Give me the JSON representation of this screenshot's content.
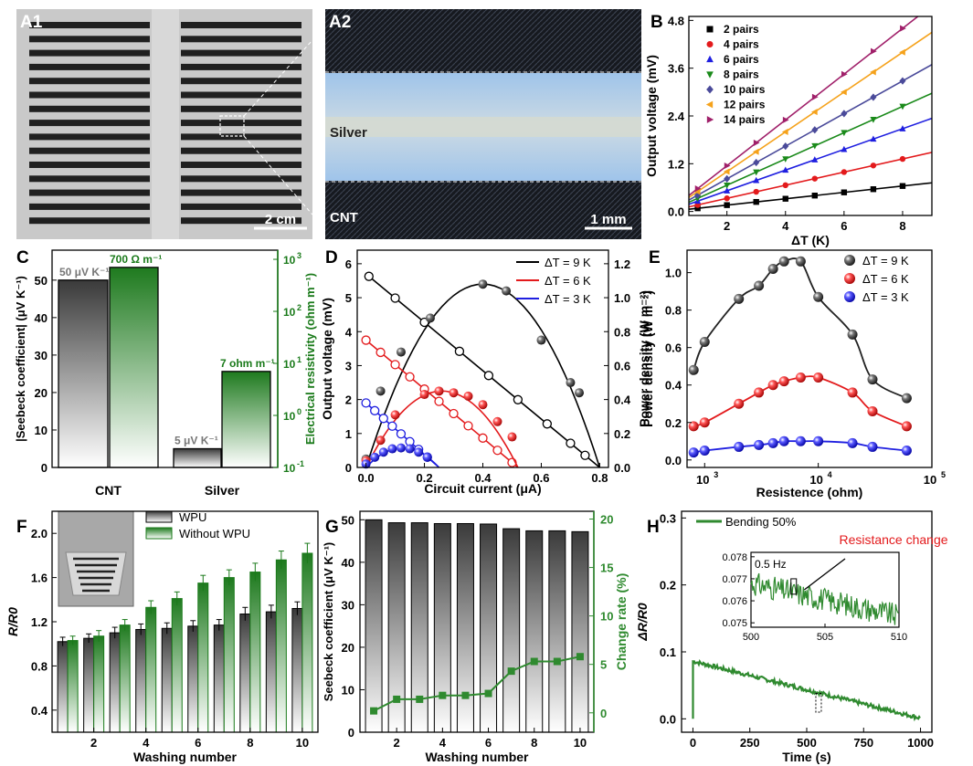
{
  "panels": {
    "a1": {
      "label": "A1",
      "scale": "2 cm"
    },
    "a2": {
      "label": "A2",
      "scale": "1 mm",
      "text_top": "Silver",
      "text_bottom": "CNT"
    },
    "f_inset_label": ""
  },
  "colors": {
    "black": "#000000",
    "red": "#e31a1c",
    "blue": "#1f1fe0",
    "green": "#1a8a1a",
    "navy": "#4a4a9a",
    "orange": "#f5a21b",
    "purple": "#a0206a",
    "darkgreen": "#2f8a2f"
  },
  "chart_data": [
    {
      "id": "B",
      "label": "B",
      "type": "scatter",
      "xlabel": "ΔT (K)",
      "ylabel": "Output voltage (mV)",
      "xlim": [
        0.7,
        9
      ],
      "ylim": [
        -0.1,
        4.9
      ],
      "xticks": [
        2,
        4,
        6,
        8
      ],
      "yticks": [
        0.0,
        1.2,
        2.4,
        3.6,
        4.8
      ],
      "ytick_labels": [
        "0.0",
        "1.2",
        "2.4",
        "3.6",
        "4.8"
      ],
      "x": [
        1,
        2,
        3,
        4,
        5,
        6,
        7,
        8
      ],
      "series": [
        {
          "name": "2 pairs",
          "marker": "square",
          "color": "#000000",
          "slope": 0.08
        },
        {
          "name": "4 pairs",
          "marker": "circle",
          "color": "#e31a1c",
          "slope": 0.165
        },
        {
          "name": "6 pairs",
          "marker": "triangle-up",
          "color": "#1f1fe0",
          "slope": 0.26
        },
        {
          "name": "8 pairs",
          "marker": "triangle-down",
          "color": "#1a8a1a",
          "slope": 0.33
        },
        {
          "name": "10 pairs",
          "marker": "diamond",
          "color": "#4a4a9a",
          "slope": 0.41
        },
        {
          "name": "12 pairs",
          "marker": "triangle-left",
          "color": "#f5a21b",
          "slope": 0.5
        },
        {
          "name": "14 pairs",
          "marker": "triangle-right",
          "color": "#a0206a",
          "slope": 0.575
        }
      ]
    },
    {
      "id": "C",
      "label": "C",
      "type": "bar",
      "categories": [
        "CNT",
        "Silver"
      ],
      "ylabel": "|Seebeck coefficient| (μV K⁻¹)",
      "ylabel2": "Electrical resistivity (ohm m⁻¹)",
      "ylim": [
        0,
        58
      ],
      "yticks": [
        0,
        10,
        20,
        30,
        40,
        50
      ],
      "y2ticks": [
        "10",
        "10",
        "10",
        "10",
        "10"
      ],
      "y2exp": [
        "-1",
        "0",
        "1",
        "2",
        "3"
      ],
      "seebeck": [
        50,
        5
      ],
      "resistivity": [
        700,
        7
      ],
      "seebeck_labels": [
        "50 μV K⁻¹",
        "5 μV K⁻¹"
      ],
      "resistivity_labels": [
        "700 Ω m⁻¹",
        "7 ohm m⁻¹"
      ]
    },
    {
      "id": "D",
      "label": "D",
      "type": "scatter+line",
      "xlabel": "Circuit current (μA)",
      "ylabel": "Output voltage (mV)",
      "ylabel2": "Power density (W m⁻²)",
      "xlim": [
        -0.03,
        0.83
      ],
      "ylim": [
        0,
        6.4
      ],
      "y2lim": [
        0,
        1.28
      ],
      "xticks": [
        0.0,
        0.2,
        0.4,
        0.6,
        0.8
      ],
      "xtick_labels": [
        "0.0",
        "0.2",
        "0.4",
        "0.6",
        "0.8"
      ],
      "yticks": [
        0,
        1,
        2,
        3,
        4,
        5,
        6
      ],
      "y2ticks": [
        0.0,
        0.2,
        0.4,
        0.6,
        0.8,
        1.0,
        1.2
      ],
      "y2tick_labels": [
        "0.0",
        "0.2",
        "0.4",
        "0.6",
        "0.8",
        "1.0",
        "1.2"
      ],
      "series": [
        {
          "name": "ΔT = 9 K",
          "color": "#000000",
          "voc": 5.7,
          "isc": 0.8,
          "voltage_x": [
            0.01,
            0.1,
            0.2,
            0.32,
            0.42,
            0.52,
            0.62,
            0.7,
            0.75
          ],
          "power_x": [
            0.0,
            0.05,
            0.12,
            0.22,
            0.4,
            0.48,
            0.6,
            0.7,
            0.73
          ],
          "power_y": [
            0.05,
            0.45,
            0.68,
            0.88,
            1.08,
            1.04,
            0.75,
            0.5,
            0.44
          ]
        },
        {
          "name": "ΔT = 6 K",
          "color": "#e31a1c",
          "voc": 3.75,
          "isc": 0.52,
          "voltage_x": [
            0.0,
            0.05,
            0.1,
            0.15,
            0.2,
            0.25,
            0.3,
            0.35,
            0.4,
            0.45,
            0.5
          ],
          "power_x": [
            0.0,
            0.05,
            0.1,
            0.2,
            0.25,
            0.3,
            0.35,
            0.4,
            0.45,
            0.5
          ],
          "power_y": [
            0.04,
            0.16,
            0.31,
            0.43,
            0.45,
            0.44,
            0.42,
            0.37,
            0.27,
            0.18
          ]
        },
        {
          "name": "ΔT = 3 K",
          "color": "#1f1fe0",
          "voc": 1.9,
          "isc": 0.25,
          "voltage_x": [
            0.0,
            0.03,
            0.06,
            0.09,
            0.12,
            0.15,
            0.18,
            0.21
          ],
          "power_x": [
            0.0,
            0.03,
            0.06,
            0.09,
            0.12,
            0.15,
            0.18,
            0.21
          ],
          "power_y": [
            0.02,
            0.06,
            0.09,
            0.11,
            0.115,
            0.11,
            0.09,
            0.06
          ]
        }
      ]
    },
    {
      "id": "E",
      "label": "E",
      "type": "scatter+line",
      "xlabel": "Resistence (ohm)",
      "ylabel": "Power density (W m⁻²)",
      "xscale": "log",
      "xlim": [
        700,
        100000
      ],
      "ylim": [
        -0.04,
        1.12
      ],
      "xticks": [
        1000,
        10000,
        100000
      ],
      "xtick_base": [
        "10",
        "10",
        "10"
      ],
      "xtick_exp": [
        "3",
        "4",
        "5"
      ],
      "yticks": [
        0.0,
        0.2,
        0.4,
        0.6,
        0.8,
        1.0
      ],
      "ytick_labels": [
        "0.0",
        "0.2",
        "0.4",
        "0.6",
        "0.8",
        "1.0"
      ],
      "x": [
        800,
        1000,
        2000,
        3000,
        4000,
        5000,
        7000,
        10000,
        20000,
        30000,
        60000
      ],
      "series": [
        {
          "name": "ΔT = 9 K",
          "color": "#222222",
          "y": [
            0.48,
            0.63,
            0.86,
            0.93,
            1.02,
            1.06,
            1.06,
            0.87,
            0.67,
            0.43,
            0.33
          ]
        },
        {
          "name": "ΔT = 6 K",
          "color": "#e31a1c",
          "y": [
            0.18,
            0.2,
            0.3,
            0.36,
            0.4,
            0.42,
            0.44,
            0.44,
            0.36,
            0.26,
            0.18
          ]
        },
        {
          "name": "ΔT = 3 K",
          "color": "#1f1fe0",
          "y": [
            0.04,
            0.05,
            0.07,
            0.08,
            0.09,
            0.1,
            0.1,
            0.1,
            0.09,
            0.07,
            0.05
          ]
        }
      ]
    },
    {
      "id": "F",
      "label": "F",
      "type": "bar",
      "xlabel": "Washing number",
      "ylabel": "R/R0",
      "categories": [
        1,
        2,
        3,
        4,
        5,
        6,
        7,
        8,
        9,
        10
      ],
      "xticks": [
        2,
        4,
        6,
        8,
        10
      ],
      "ylim": [
        0.2,
        2.2
      ],
      "yticks": [
        0.4,
        0.8,
        1.2,
        1.6,
        2.0
      ],
      "ytick_labels": [
        "0.4",
        "0.8",
        "1.2",
        "1.6",
        "2.0"
      ],
      "series": [
        {
          "name": "WPU",
          "values": [
            1.02,
            1.05,
            1.1,
            1.13,
            1.14,
            1.16,
            1.17,
            1.27,
            1.29,
            1.32
          ],
          "errors": [
            0.04,
            0.04,
            0.05,
            0.05,
            0.05,
            0.05,
            0.05,
            0.06,
            0.06,
            0.06
          ]
        },
        {
          "name": "Without WPU",
          "values": [
            1.03,
            1.07,
            1.17,
            1.33,
            1.41,
            1.55,
            1.6,
            1.65,
            1.76,
            1.82
          ],
          "errors": [
            0.04,
            0.05,
            0.05,
            0.06,
            0.06,
            0.07,
            0.07,
            0.08,
            0.08,
            0.09
          ]
        }
      ]
    },
    {
      "id": "G",
      "label": "G",
      "type": "bar+line",
      "xlabel": "Washing number",
      "ylabel": "Seebeck coefficient (μV K⁻¹)",
      "ylabel2": "Change rate (%)",
      "categories": [
        1,
        2,
        3,
        4,
        5,
        6,
        7,
        8,
        9,
        10
      ],
      "xticks": [
        2,
        4,
        6,
        8,
        10
      ],
      "ylim": [
        0,
        52
      ],
      "yticks": [
        0,
        10,
        20,
        30,
        40,
        50
      ],
      "y2lim": [
        -2,
        20.8
      ],
      "y2ticks": [
        0,
        5,
        10,
        15,
        20
      ],
      "seebeck": [
        50.0,
        49.3,
        49.3,
        49.1,
        49.1,
        49.0,
        47.9,
        47.4,
        47.4,
        47.2
      ],
      "change_rate": [
        0.2,
        1.4,
        1.4,
        1.8,
        1.8,
        2.0,
        4.3,
        5.3,
        5.3,
        5.8
      ]
    },
    {
      "id": "H",
      "label": "H",
      "type": "line",
      "xlabel": "Time (s)",
      "ylabel": "ΔR/R0",
      "xlim": [
        -50,
        1050
      ],
      "ylim": [
        -0.02,
        0.31
      ],
      "xticks": [
        0,
        250,
        500,
        750,
        1000
      ],
      "yticks": [
        0.0,
        0.1,
        0.2,
        0.3
      ],
      "ytick_labels": [
        "0.0",
        "0.1",
        "0.2",
        "0.3"
      ],
      "legend": "Bending 50%",
      "annotation": "Resistance change",
      "start": 0.086,
      "end": 0.001,
      "inset": {
        "xlim": [
          500,
          510
        ],
        "ylim": [
          0.0748,
          0.0782
        ],
        "xticks": [
          500,
          505,
          510
        ],
        "yticks": [
          0.075,
          0.076,
          0.077,
          0.078
        ],
        "ytick_labels": [
          "0.075",
          "0.076",
          "0.077",
          "0.078"
        ],
        "frequency": "0.5 Hz",
        "start": 0.0768,
        "end": 0.0753
      }
    }
  ]
}
